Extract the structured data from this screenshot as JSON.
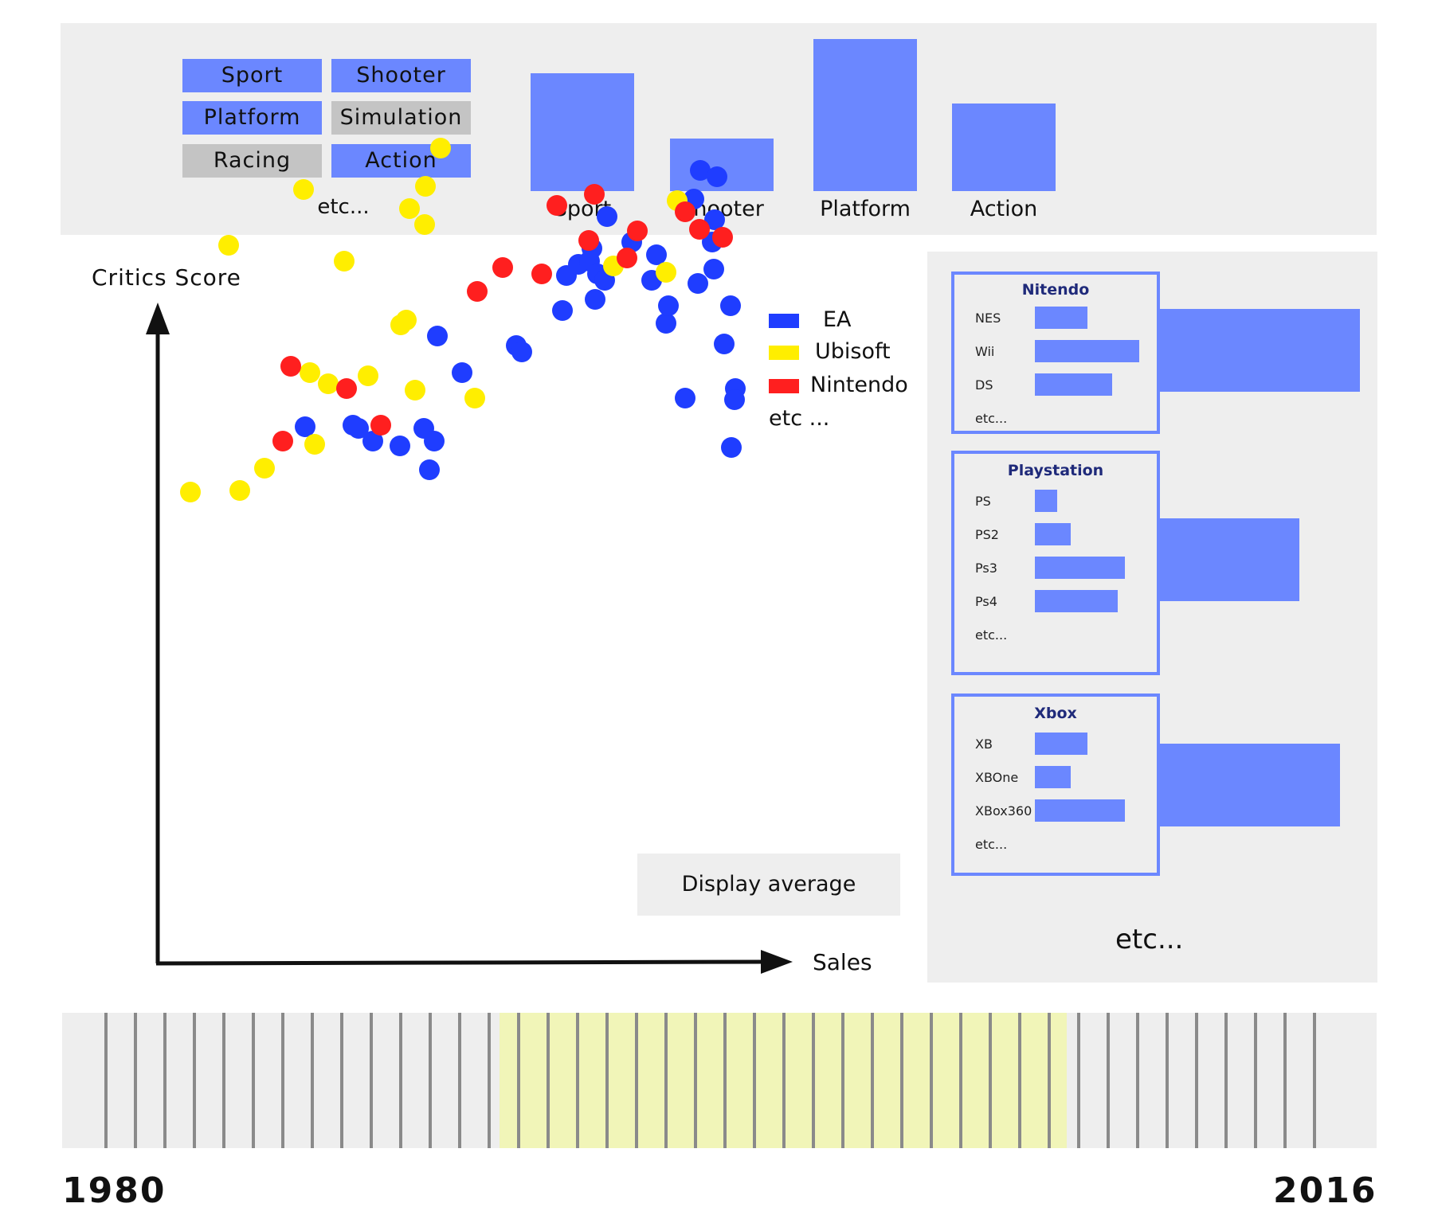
{
  "genre_filters": {
    "buttons": [
      {
        "label": "Sport",
        "active": true
      },
      {
        "label": "Shooter",
        "active": true
      },
      {
        "label": "Platform",
        "active": true
      },
      {
        "label": "Simulation",
        "active": false
      },
      {
        "label": "Racing",
        "active": false
      },
      {
        "label": "Action",
        "active": true
      }
    ],
    "more_label": "etc..."
  },
  "chart_data": [
    {
      "type": "bar",
      "categories": [
        "Sport",
        "Shooter",
        "Platform",
        "Action"
      ],
      "values": [
        148,
        66,
        191,
        110
      ],
      "color": "#6b87ff"
    },
    {
      "type": "scatter",
      "ylabel": "Critics Score",
      "xlabel": "Sales",
      "legend": [
        "EA",
        "Ubisoft",
        "Nintendo",
        "etc ..."
      ],
      "legend_position": "top-right",
      "series": [
        {
          "name": "EA",
          "color": "#1f3dff",
          "points": [
            [
              385,
              177
            ],
            [
              445,
              178
            ],
            [
              452,
              176
            ],
            [
              470,
              168
            ],
            [
              504,
              165
            ],
            [
              534,
              176
            ],
            [
              541,
              150
            ],
            [
              547,
              168
            ],
            [
              582,
              211
            ],
            [
              551,
              234
            ],
            [
              650,
              228
            ],
            [
              657,
              224
            ],
            [
              708,
              250
            ],
            [
              713,
              272
            ],
            [
              728,
              279
            ],
            [
              745,
              289
            ],
            [
              764,
              309
            ],
            [
              795,
              293
            ],
            [
              820,
              269
            ],
            [
              838,
              242
            ],
            [
              873,
              320
            ],
            [
              881,
              338
            ],
            [
              899,
              307
            ],
            [
              902,
              334
            ],
            [
              896,
              293
            ],
            [
              878,
              267
            ],
            [
              898,
              276
            ],
            [
              911,
              229
            ],
            [
              919,
              253
            ],
            [
              925,
              201
            ],
            [
              920,
              164
            ],
            [
              924,
              194
            ],
            [
              742,
              281
            ],
            [
              749,
              257
            ],
            [
              752,
              273
            ],
            [
              862,
              195
            ],
            [
              761,
              269
            ],
            [
              841,
              253
            ],
            [
              826,
              285
            ]
          ]
        },
        {
          "name": "Ubisoft",
          "color": "#ffee00",
          "points": [
            [
              241,
              136
            ],
            [
              303,
              137
            ],
            [
              334,
              151
            ],
            [
              397,
              166
            ],
            [
              391,
              211
            ],
            [
              414,
              204
            ],
            [
              464,
              209
            ],
            [
              505,
              241
            ],
            [
              512,
              244
            ],
            [
              523,
              200
            ],
            [
              535,
              304
            ],
            [
              516,
              314
            ],
            [
              536,
              328
            ],
            [
              555,
              352
            ],
            [
              598,
              195
            ],
            [
              772,
              278
            ],
            [
              852,
              319
            ],
            [
              838,
              274
            ],
            [
              434,
              281
            ],
            [
              383,
              326
            ],
            [
              289,
              291
            ]
          ]
        },
        {
          "name": "Nintendo",
          "color": "#ff1f1f",
          "points": [
            [
              357,
              168
            ],
            [
              367,
              215
            ],
            [
              437,
              201
            ],
            [
              480,
              178
            ],
            [
              601,
              262
            ],
            [
              633,
              277
            ],
            [
              682,
              273
            ],
            [
              701,
              316
            ],
            [
              748,
              323
            ],
            [
              789,
              283
            ],
            [
              802,
              300
            ],
            [
              862,
              312
            ],
            [
              880,
              301
            ],
            [
              909,
              296
            ],
            [
              741,
              294
            ]
          ]
        }
      ]
    },
    {
      "type": "bar",
      "title": "Nitendo",
      "categories": [
        "NES",
        "Wii",
        "DS",
        "etc..."
      ],
      "values": [
        38,
        75,
        56,
        null
      ],
      "total": 100
    },
    {
      "type": "bar",
      "title": "Playstation",
      "categories": [
        "PS",
        "PS2",
        "Ps3",
        "Ps4",
        "etc..."
      ],
      "values": [
        16,
        26,
        65,
        60,
        null
      ],
      "total": 70
    },
    {
      "type": "bar",
      "title": "Xbox",
      "categories": [
        "XB",
        "XBOne",
        "XBox360",
        "etc..."
      ],
      "values": [
        38,
        26,
        65,
        null
      ],
      "total": 90
    }
  ],
  "average_button": {
    "label": "Display average"
  },
  "right_panel": {
    "more_label": "etc..."
  },
  "timeline": {
    "start_label": "1980",
    "end_label": "2016",
    "selected_start_year": 1992,
    "selected_end_year": 2007,
    "range_color": "#f1f5b8"
  }
}
